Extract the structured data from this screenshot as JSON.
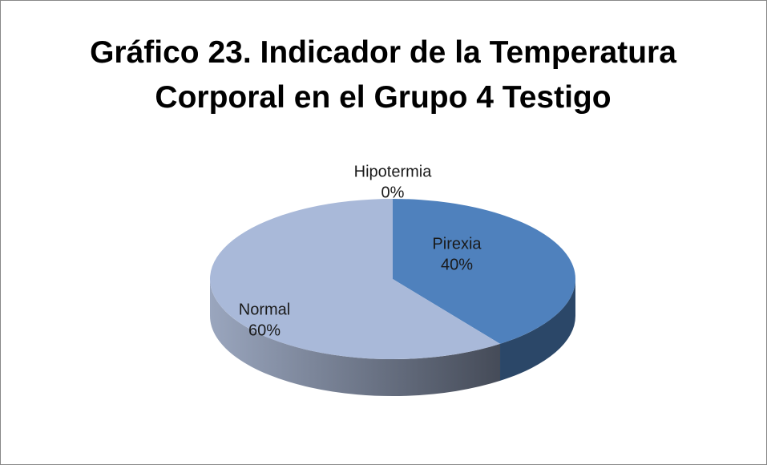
{
  "chart_data": {
    "type": "pie",
    "title": "Gráfico 23. Indicador de la Temperatura Corporal en el Grupo 4 Testigo",
    "categories": [
      "Hipotermia",
      "Pirexia",
      "Normal"
    ],
    "values": [
      0,
      40,
      60
    ],
    "value_labels": [
      "0%",
      "40%",
      "60%"
    ],
    "colors": [
      "#c0504d",
      "#4f81bd",
      "#a9b9d9"
    ]
  }
}
